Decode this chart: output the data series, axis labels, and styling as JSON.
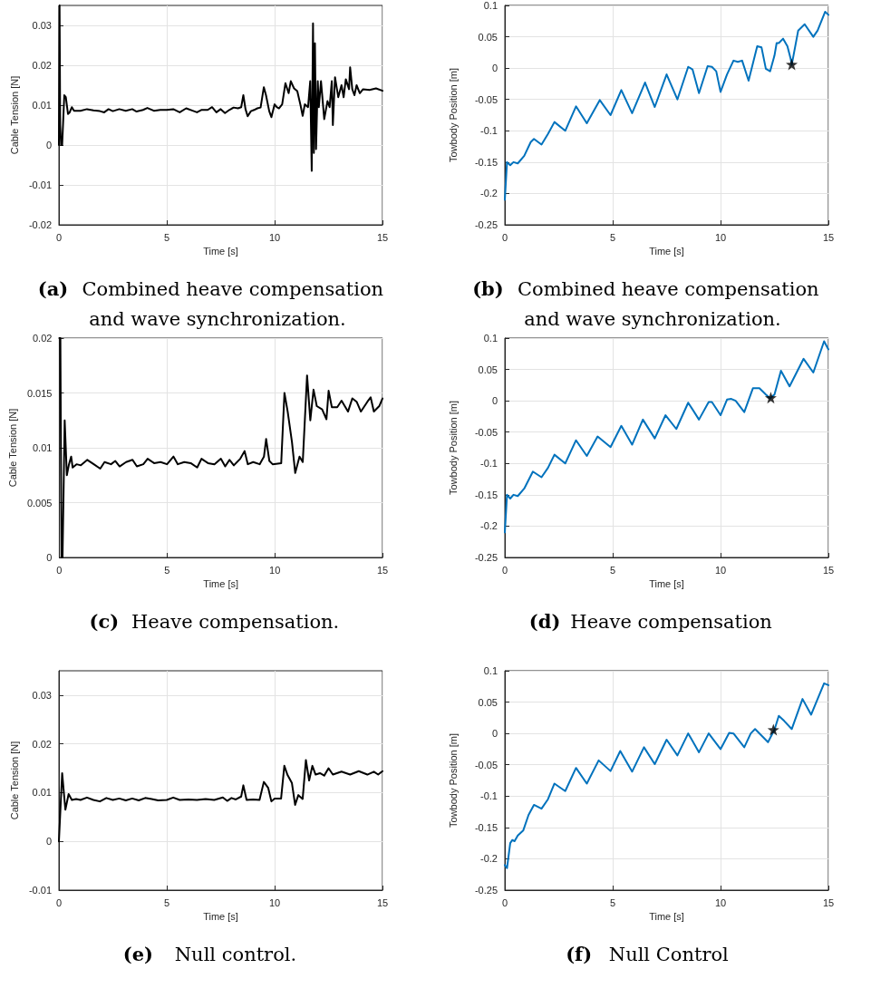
{
  "chart_data": [
    {
      "type": "line",
      "title": "(a) Combined heave compensation and wave synchronization.",
      "xlabel": "Time [s]",
      "ylabel": "Cable Tension [N]",
      "xlim": [
        0,
        15
      ],
      "xticks": [
        0,
        5,
        10,
        15
      ],
      "ylim": [
        -0.02,
        0.035
      ],
      "yticks": [
        -0.02,
        -0.01,
        0,
        0.01,
        0.02,
        0.03
      ],
      "grid": true,
      "marker": "none",
      "line_style": "solid",
      "series": [
        {
          "color": "#000000",
          "x": [
            0,
            0.03,
            0.06,
            0.1,
            0.15,
            0.25,
            0.32,
            0.42,
            0.5,
            0.6,
            0.7,
            1,
            1.3,
            1.6,
            1.9,
            2.1,
            2.3,
            2.5,
            2.8,
            3.1,
            3.4,
            3.6,
            3.9,
            4.1,
            4.4,
            4.7,
            5,
            5.3,
            5.6,
            5.9,
            6.2,
            6.4,
            6.6,
            6.9,
            7.1,
            7.3,
            7.5,
            7.7,
            7.9,
            8.1,
            8.3,
            8.45,
            8.55,
            8.65,
            8.75,
            8.9,
            9.05,
            9.2,
            9.35,
            9.5,
            9.6,
            9.75,
            9.85,
            10,
            10.1,
            10.2,
            10.35,
            10.5,
            10.65,
            10.75,
            10.9,
            11.05,
            11.2,
            11.3,
            11.4,
            11.55,
            11.65,
            11.72,
            11.78,
            11.82,
            11.87,
            11.92,
            12,
            12.05,
            12.15,
            12.3,
            12.45,
            12.55,
            12.65,
            12.7,
            12.8,
            12.95,
            13.1,
            13.2,
            13.3,
            13.45,
            13.5,
            13.6,
            13.7,
            13.8,
            13.95,
            14.1,
            14.4,
            14.7,
            15
          ],
          "values": [
            0,
            0.035,
            0.005,
            0,
            0,
            0.0125,
            0.012,
            0.0078,
            0.0082,
            0.0095,
            0.0086,
            0.0086,
            0.009,
            0.0087,
            0.0085,
            0.0082,
            0.009,
            0.0085,
            0.009,
            0.0086,
            0.009,
            0.0084,
            0.0088,
            0.0093,
            0.0086,
            0.0088,
            0.0088,
            0.009,
            0.0082,
            0.0092,
            0.0086,
            0.0082,
            0.0088,
            0.0088,
            0.0095,
            0.0082,
            0.009,
            0.008,
            0.0088,
            0.0094,
            0.0092,
            0.0095,
            0.0125,
            0.009,
            0.0072,
            0.0085,
            0.0088,
            0.0092,
            0.0094,
            0.0145,
            0.0125,
            0.0085,
            0.007,
            0.0102,
            0.0095,
            0.0092,
            0.0102,
            0.0155,
            0.013,
            0.016,
            0.0142,
            0.0135,
            0.01,
            0.0073,
            0.0102,
            0.0095,
            0.016,
            -0.0065,
            0.0305,
            -0.002,
            0.0255,
            -0.001,
            0.016,
            0.0095,
            0.016,
            0.0065,
            0.011,
            0.0095,
            0.016,
            0.005,
            0.017,
            0.012,
            0.015,
            0.012,
            0.0165,
            0.014,
            0.0195,
            0.014,
            0.0125,
            0.015,
            0.013,
            0.014,
            0.0138,
            0.0142,
            0.0136
          ]
        }
      ]
    },
    {
      "type": "line",
      "title": "(b) Combined heave compensation and wave synchronization.",
      "xlabel": "Time [s]",
      "ylabel": "Towbody Position [m]",
      "xlim": [
        0,
        15
      ],
      "xticks": [
        0,
        5,
        10,
        15
      ],
      "ylim": [
        -0.25,
        0.1
      ],
      "yticks": [
        -0.25,
        -0.2,
        -0.15,
        -0.1,
        -0.05,
        0,
        0.05,
        0.1
      ],
      "grid": true,
      "marker": "none",
      "line_style": "solid",
      "series": [
        {
          "color": "#0072bd",
          "x": [
            0,
            0.1,
            0.25,
            0.4,
            0.6,
            0.9,
            1.2,
            1.35,
            1.7,
            2,
            2.3,
            2.8,
            3.3,
            3.8,
            4.4,
            4.9,
            5.4,
            5.9,
            6.5,
            6.95,
            7.5,
            8,
            8.5,
            8.7,
            9,
            9.4,
            9.6,
            9.8,
            10,
            10.3,
            10.6,
            10.8,
            11,
            11.3,
            11.7,
            11.9,
            12.1,
            12.3,
            12.5,
            12.6,
            12.7,
            12.9,
            13.1,
            13.25,
            13.3,
            13.6,
            13.9,
            14.3,
            14.5,
            14.85,
            15
          ],
          "values": [
            -0.21,
            -0.15,
            -0.155,
            -0.15,
            -0.152,
            -0.14,
            -0.118,
            -0.113,
            -0.122,
            -0.105,
            -0.086,
            -0.1,
            -0.061,
            -0.088,
            -0.051,
            -0.075,
            -0.035,
            -0.072,
            -0.023,
            -0.062,
            -0.01,
            -0.05,
            0.002,
            -0.002,
            -0.04,
            0.003,
            0.002,
            -0.005,
            -0.038,
            -0.01,
            0.012,
            0.01,
            0.012,
            -0.02,
            0.035,
            0.033,
            -0.001,
            -0.005,
            0.02,
            0.04,
            0.04,
            0.047,
            0.035,
            0.015,
            0.005,
            0.06,
            0.07,
            0.05,
            0.06,
            0.09,
            0.085
          ]
        },
        {
          "type": "scatter",
          "marker": "star",
          "color": "#000000",
          "x": [
            13.3
          ],
          "values": [
            0.006
          ]
        }
      ]
    },
    {
      "type": "line",
      "title": "(c) Heave compensation.",
      "xlabel": "Time [s]",
      "ylabel": "Cable Tension [N]",
      "xlim": [
        0,
        15
      ],
      "xticks": [
        0,
        5,
        10,
        15
      ],
      "ylim": [
        0,
        0.02
      ],
      "yticks": [
        0,
        0.005,
        0.01,
        0.015,
        0.02
      ],
      "grid": true,
      "marker": "none",
      "line_style": "solid",
      "series": [
        {
          "color": "#000000",
          "x": [
            0,
            0.05,
            0.1,
            0.15,
            0.25,
            0.35,
            0.45,
            0.55,
            0.62,
            0.8,
            1,
            1.3,
            1.6,
            1.9,
            2.1,
            2.4,
            2.6,
            2.8,
            3.1,
            3.4,
            3.6,
            3.9,
            4.1,
            4.4,
            4.7,
            5,
            5.3,
            5.5,
            5.8,
            6.1,
            6.4,
            6.6,
            6.9,
            7.2,
            7.5,
            7.7,
            7.9,
            8.1,
            8.4,
            8.6,
            8.75,
            9,
            9.3,
            9.5,
            9.6,
            9.75,
            9.9,
            10.3,
            10.45,
            10.6,
            10.8,
            10.95,
            11.15,
            11.3,
            11.5,
            11.65,
            11.8,
            11.95,
            12.2,
            12.4,
            12.5,
            12.65,
            12.9,
            13.1,
            13.4,
            13.6,
            13.8,
            14,
            14.3,
            14.45,
            14.6,
            14.85,
            15
          ],
          "values": [
            0.02,
            0.02,
            0,
            0,
            0.0125,
            0.0075,
            0.0085,
            0.0092,
            0.0082,
            0.0085,
            0.0084,
            0.0089,
            0.0085,
            0.0081,
            0.0087,
            0.0085,
            0.0088,
            0.0083,
            0.0087,
            0.0089,
            0.0083,
            0.0085,
            0.009,
            0.0086,
            0.0087,
            0.0085,
            0.0092,
            0.0085,
            0.0087,
            0.0086,
            0.0082,
            0.009,
            0.0086,
            0.0085,
            0.009,
            0.0083,
            0.0089,
            0.0084,
            0.009,
            0.0097,
            0.0085,
            0.0087,
            0.0085,
            0.0092,
            0.0108,
            0.0088,
            0.0085,
            0.0086,
            0.015,
            0.0133,
            0.0105,
            0.0077,
            0.0092,
            0.0087,
            0.0166,
            0.0125,
            0.0153,
            0.0138,
            0.0135,
            0.0126,
            0.0152,
            0.0137,
            0.0137,
            0.0143,
            0.0133,
            0.0145,
            0.0142,
            0.0133,
            0.0142,
            0.0146,
            0.0133,
            0.0138,
            0.0145
          ]
        }
      ]
    },
    {
      "type": "line",
      "title": "(d) Heave compensation",
      "xlabel": "Time [s]",
      "ylabel": "Towbody Position [m]",
      "xlim": [
        0,
        15
      ],
      "xticks": [
        0,
        5,
        10,
        15
      ],
      "ylim": [
        -0.25,
        0.1
      ],
      "yticks": [
        -0.25,
        -0.2,
        -0.15,
        -0.1,
        -0.05,
        0,
        0.05,
        0.1
      ],
      "grid": true,
      "marker": "none",
      "line_style": "solid",
      "series": [
        {
          "color": "#0072bd",
          "x": [
            0,
            0.1,
            0.25,
            0.4,
            0.6,
            0.9,
            1.3,
            1.7,
            2,
            2.3,
            2.8,
            3.3,
            3.8,
            4.3,
            4.9,
            5.4,
            5.9,
            6.4,
            6.95,
            7.45,
            7.95,
            8.5,
            9,
            9.45,
            9.6,
            10,
            10.3,
            10.5,
            10.7,
            11.1,
            11.5,
            11.8,
            12.1,
            12.3,
            12.5,
            12.8,
            13.2,
            13.85,
            14.3,
            14.8,
            15
          ],
          "values": [
            -0.21,
            -0.15,
            -0.156,
            -0.15,
            -0.152,
            -0.14,
            -0.113,
            -0.122,
            -0.107,
            -0.086,
            -0.1,
            -0.063,
            -0.088,
            -0.057,
            -0.074,
            -0.04,
            -0.07,
            -0.03,
            -0.06,
            -0.023,
            -0.045,
            -0.003,
            -0.03,
            -0.002,
            -0.002,
            -0.023,
            0.002,
            0.003,
            0,
            -0.018,
            0.02,
            0.02,
            0.01,
            0.004,
            0.01,
            0.048,
            0.023,
            0.067,
            0.045,
            0.095,
            0.082
          ]
        },
        {
          "type": "scatter",
          "marker": "star",
          "color": "#000000",
          "x": [
            12.33
          ],
          "values": [
            0.005
          ]
        }
      ]
    },
    {
      "type": "line",
      "title": "(e) Null control.",
      "xlabel": "Time [s]",
      "ylabel": "Cable Tension [N]",
      "xlim": [
        0,
        15
      ],
      "xticks": [
        0,
        5,
        10,
        15
      ],
      "ylim": [
        -0.01,
        0.035
      ],
      "yticks": [
        -0.01,
        0,
        0.01,
        0.02,
        0.03
      ],
      "grid": true,
      "marker": "none",
      "line_style": "solid",
      "series": [
        {
          "color": "#000000",
          "x": [
            0,
            0.15,
            0.3,
            0.45,
            0.6,
            0.8,
            1,
            1.3,
            1.6,
            1.9,
            2.2,
            2.5,
            2.8,
            3.1,
            3.4,
            3.7,
            4,
            4.3,
            4.6,
            5,
            5.3,
            5.6,
            6,
            6.4,
            6.8,
            7.2,
            7.6,
            7.8,
            8,
            8.2,
            8.45,
            8.55,
            8.7,
            9,
            9.3,
            9.5,
            9.7,
            9.85,
            10,
            10.3,
            10.45,
            10.6,
            10.8,
            10.95,
            11.1,
            11.3,
            11.45,
            11.6,
            11.75,
            11.9,
            12.1,
            12.3,
            12.5,
            12.7,
            13.1,
            13.5,
            13.9,
            14.3,
            14.6,
            14.8,
            15
          ],
          "values": [
            0,
            0.014,
            0.0065,
            0.0097,
            0.0085,
            0.0087,
            0.0085,
            0.009,
            0.0085,
            0.0082,
            0.0089,
            0.0085,
            0.0088,
            0.0084,
            0.0088,
            0.0084,
            0.0089,
            0.0087,
            0.0084,
            0.0085,
            0.009,
            0.0085,
            0.0086,
            0.0085,
            0.0087,
            0.0085,
            0.009,
            0.0083,
            0.0089,
            0.0086,
            0.0092,
            0.0115,
            0.0085,
            0.0086,
            0.0085,
            0.0122,
            0.011,
            0.0082,
            0.0088,
            0.0088,
            0.0155,
            0.0136,
            0.012,
            0.0075,
            0.0095,
            0.0087,
            0.0167,
            0.0125,
            0.0155,
            0.0137,
            0.014,
            0.0135,
            0.015,
            0.0137,
            0.0143,
            0.0137,
            0.0144,
            0.0137,
            0.0143,
            0.0137,
            0.0144
          ]
        }
      ]
    },
    {
      "type": "line",
      "title": "(f) Null Control",
      "xlabel": "Time [s]",
      "ylabel": "Towbody Position [m]",
      "xlim": [
        0,
        15
      ],
      "xticks": [
        0,
        5,
        10,
        15
      ],
      "ylim": [
        -0.25,
        0.1
      ],
      "yticks": [
        -0.25,
        -0.2,
        -0.15,
        -0.1,
        -0.05,
        0,
        0.05,
        0.1
      ],
      "grid": true,
      "marker": "none",
      "line_style": "solid",
      "series": [
        {
          "color": "#0072bd",
          "x": [
            0,
            0.1,
            0.25,
            0.35,
            0.45,
            0.6,
            0.85,
            1.1,
            1.35,
            1.7,
            2,
            2.3,
            2.8,
            3.3,
            3.8,
            4.35,
            4.9,
            5.35,
            5.9,
            6.45,
            6.95,
            7.5,
            8,
            8.5,
            9,
            9.45,
            10,
            10.4,
            10.6,
            11.1,
            11.4,
            11.6,
            12.2,
            12.5,
            12.7,
            12.95,
            13.3,
            13.8,
            14.2,
            14.8,
            15
          ],
          "values": [
            -0.21,
            -0.215,
            -0.175,
            -0.17,
            -0.172,
            -0.163,
            -0.155,
            -0.13,
            -0.114,
            -0.12,
            -0.105,
            -0.08,
            -0.092,
            -0.055,
            -0.08,
            -0.043,
            -0.06,
            -0.028,
            -0.061,
            -0.022,
            -0.049,
            -0.01,
            -0.035,
            0,
            -0.03,
            0,
            -0.025,
            0.001,
            0,
            -0.022,
            0,
            0.007,
            -0.014,
            0.006,
            0.028,
            0.02,
            0.007,
            0.055,
            0.03,
            0.08,
            0.077
          ]
        },
        {
          "type": "scatter",
          "marker": "star",
          "color": "#000000",
          "x": [
            12.45
          ],
          "values": [
            0.006
          ]
        }
      ]
    }
  ]
}
